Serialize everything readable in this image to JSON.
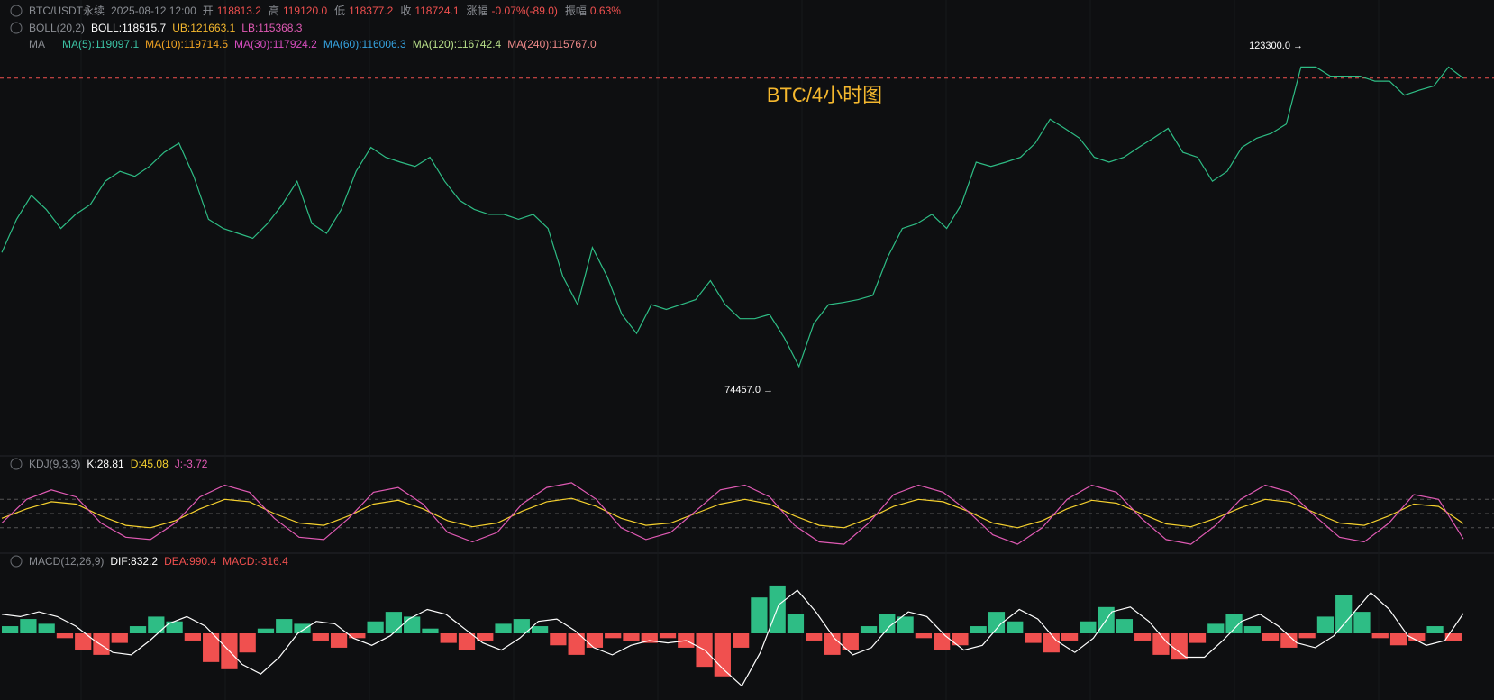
{
  "header": {
    "symbol": "BTC/USDT永续",
    "datetime": "2025-08-12 12:00",
    "fields": [
      {
        "label": "开",
        "value": "118813.2"
      },
      {
        "label": "高",
        "value": "119120.0"
      },
      {
        "label": "低",
        "value": "118377.2"
      },
      {
        "label": "收",
        "value": "118724.1"
      },
      {
        "label": "涨幅",
        "value": "-0.07%(-89.0)"
      },
      {
        "label": "振幅",
        "value": "0.63%"
      }
    ]
  },
  "boll": {
    "name": "BOLL(20,2)",
    "items": [
      {
        "text": "BOLL:118515.7",
        "color": "#ffffff"
      },
      {
        "text": "UB:121663.1",
        "color": "#f5b82e"
      },
      {
        "text": "LB:115368.3",
        "color": "#e05ab4"
      }
    ]
  },
  "ma": {
    "name": "MA",
    "items": [
      {
        "text": "MA(5):119097.1",
        "color": "#3cc3a5"
      },
      {
        "text": "MA(10):119714.5",
        "color": "#f5a623"
      },
      {
        "text": "MA(30):117924.2",
        "color": "#d84dc0"
      },
      {
        "text": "MA(60):116006.3",
        "color": "#36a3e0"
      },
      {
        "text": "MA(120):116742.4",
        "color": "#b9e08a"
      },
      {
        "text": "MA(240):115767.0",
        "color": "#f08a8a"
      }
    ]
  },
  "kdj": {
    "name": "KDJ(9,3,3)",
    "items": [
      {
        "text": "K:28.81",
        "color": "#ffffff"
      },
      {
        "text": "D:45.08",
        "color": "#f5d02e"
      },
      {
        "text": "J:-3.72",
        "color": "#e05ab4"
      }
    ]
  },
  "macd": {
    "name": "MACD(12,26,9)",
    "items": [
      {
        "text": "DIF:832.2",
        "color": "#ffffff"
      },
      {
        "text": "DEA:990.4",
        "color": "#f0504f"
      },
      {
        "text": "MACD:-316.4",
        "color": "#f0504f"
      }
    ]
  },
  "watermark": "BTC/4小时图",
  "annotations": [
    "123300.0 →",
    "74457.0 →"
  ],
  "chart_data": [
    {
      "type": "line",
      "ylim": [
        65900,
        124700
      ],
      "last_price": 118724.1,
      "last_price_color": "#f0504f",
      "series": [
        {
          "color": "#2ebd85",
          "values": [
            94000,
            98700,
            102100,
            100100,
            97400,
            99400,
            100800,
            104100,
            105500,
            104800,
            106200,
            108200,
            109500,
            104800,
            98700,
            97400,
            96700,
            96000,
            98100,
            100800,
            104100,
            98100,
            96700,
            100100,
            105500,
            108900,
            107500,
            106800,
            106200,
            107500,
            104100,
            101400,
            100100,
            99400,
            99400,
            98700,
            99400,
            97400,
            90600,
            86600,
            94700,
            90600,
            85200,
            82500,
            86600,
            85900,
            86600,
            87300,
            90000,
            86600,
            84600,
            84600,
            85200,
            81900,
            77800,
            83900,
            86600,
            86900,
            87300,
            87900,
            93300,
            97400,
            98100,
            99400,
            97400,
            100800,
            106800,
            106200,
            106800,
            107500,
            109500,
            112900,
            111600,
            110200,
            107500,
            106800,
            107500,
            108900,
            110200,
            111600,
            108200,
            107500,
            104100,
            105500,
            108900,
            110200,
            110900,
            112200,
            120300,
            120300,
            119000,
            119000,
            119000,
            118300,
            118300,
            116300,
            117000,
            117600,
            120300,
            118700
          ]
        }
      ]
    },
    {
      "type": "line",
      "ylim": [
        -30,
        130
      ],
      "guide_lines": [
        20,
        50,
        80
      ],
      "series": [
        {
          "color": "#f5d02e",
          "values": [
            40,
            60,
            75,
            70,
            45,
            25,
            20,
            35,
            60,
            80,
            75,
            50,
            30,
            25,
            45,
            70,
            78,
            60,
            35,
            22,
            30,
            55,
            75,
            82,
            65,
            40,
            25,
            30,
            50,
            70,
            80,
            70,
            45,
            25,
            20,
            40,
            65,
            80,
            75,
            55,
            30,
            20,
            35,
            60,
            78,
            72,
            50,
            28,
            22,
            40,
            62,
            80,
            74,
            52,
            30,
            25,
            45,
            70,
            65,
            28.81
          ]
        },
        {
          "color": "#e05ab4",
          "values": [
            30,
            80,
            100,
            85,
            30,
            0,
            -5,
            30,
            85,
            110,
            95,
            40,
            0,
            -5,
            40,
            95,
            105,
            70,
            10,
            -10,
            10,
            70,
            105,
            115,
            80,
            20,
            -5,
            10,
            55,
            100,
            110,
            85,
            25,
            -10,
            -15,
            30,
            90,
            110,
            95,
            55,
            5,
            -15,
            20,
            80,
            110,
            95,
            40,
            -5,
            -15,
            25,
            80,
            110,
            95,
            45,
            0,
            -10,
            30,
            90,
            80,
            -3.72
          ]
        }
      ]
    },
    {
      "type": "bar",
      "ylim": [
        -2600,
        2600
      ],
      "up_color": "#2ebd85",
      "down_color": "#f0504f",
      "values": [
        300,
        600,
        400,
        -200,
        -700,
        -900,
        -400,
        300,
        700,
        500,
        -300,
        -1200,
        -1500,
        -800,
        200,
        600,
        400,
        -300,
        -600,
        -200,
        500,
        900,
        700,
        200,
        -400,
        -700,
        -300,
        400,
        600,
        300,
        -500,
        -900,
        -600,
        -200,
        -300,
        -400,
        -200,
        -600,
        -1400,
        -1800,
        -600,
        1500,
        2000,
        800,
        -300,
        -900,
        -700,
        300,
        800,
        700,
        -200,
        -700,
        -500,
        300,
        900,
        500,
        -400,
        -800,
        -300,
        500,
        1100,
        600,
        -300,
        -900,
        -1100,
        -400,
        400,
        800,
        300,
        -300,
        -600,
        -200,
        700,
        1600,
        900,
        -200,
        -500,
        -300,
        300,
        -316.4
      ],
      "series": [
        {
          "color": "#ffffff",
          "values": [
            800,
            700,
            900,
            700,
            300,
            -300,
            -800,
            -900,
            -300,
            400,
            700,
            300,
            -500,
            -1300,
            -1700,
            -1000,
            0,
            500,
            400,
            -200,
            -500,
            -100,
            600,
            1000,
            800,
            200,
            -400,
            -700,
            -200,
            500,
            600,
            100,
            -600,
            -900,
            -500,
            -300,
            -400,
            -300,
            -700,
            -1500,
            -2200,
            -800,
            1200,
            1800,
            900,
            -200,
            -900,
            -600,
            300,
            900,
            700,
            -100,
            -700,
            -500,
            400,
            1000,
            600,
            -300,
            -800,
            -200,
            900,
            1100,
            500,
            -400,
            -1000,
            -1000,
            -300,
            500,
            800,
            300,
            -400,
            -600,
            -100,
            800,
            1700,
            1000,
            -100,
            -500,
            -300,
            832.2
          ]
        }
      ]
    }
  ]
}
